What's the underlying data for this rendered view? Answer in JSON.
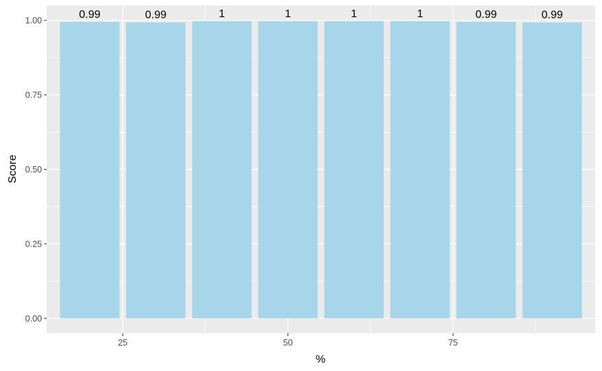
{
  "chart_data": {
    "type": "bar",
    "xlabel": "%",
    "ylabel": "Score",
    "x": [
      20,
      30,
      40,
      50,
      60,
      70,
      80,
      90
    ],
    "values": [
      0.995,
      0.993,
      0.997,
      0.997,
      0.997,
      0.997,
      0.995,
      0.993
    ],
    "labels": [
      "0.99",
      "0.99",
      "1",
      "1",
      "1",
      "1",
      "0.99",
      "0.99"
    ],
    "xlim": [
      13.5,
      96.5
    ],
    "ylim": [
      -0.05,
      1.05
    ],
    "x_ticks": [
      25,
      50,
      75
    ],
    "x_tick_labels": [
      "25",
      "50",
      "75"
    ],
    "y_ticks": [
      0,
      0.25,
      0.5,
      0.75,
      1
    ],
    "y_tick_labels": [
      "0.00",
      "0.25",
      "0.50",
      "0.75",
      "1.00"
    ],
    "bar_width": 9,
    "grid": true,
    "colors": {
      "bar": "#a7d6ea",
      "panel": "#ebebeb",
      "grid": "#ffffff"
    }
  }
}
